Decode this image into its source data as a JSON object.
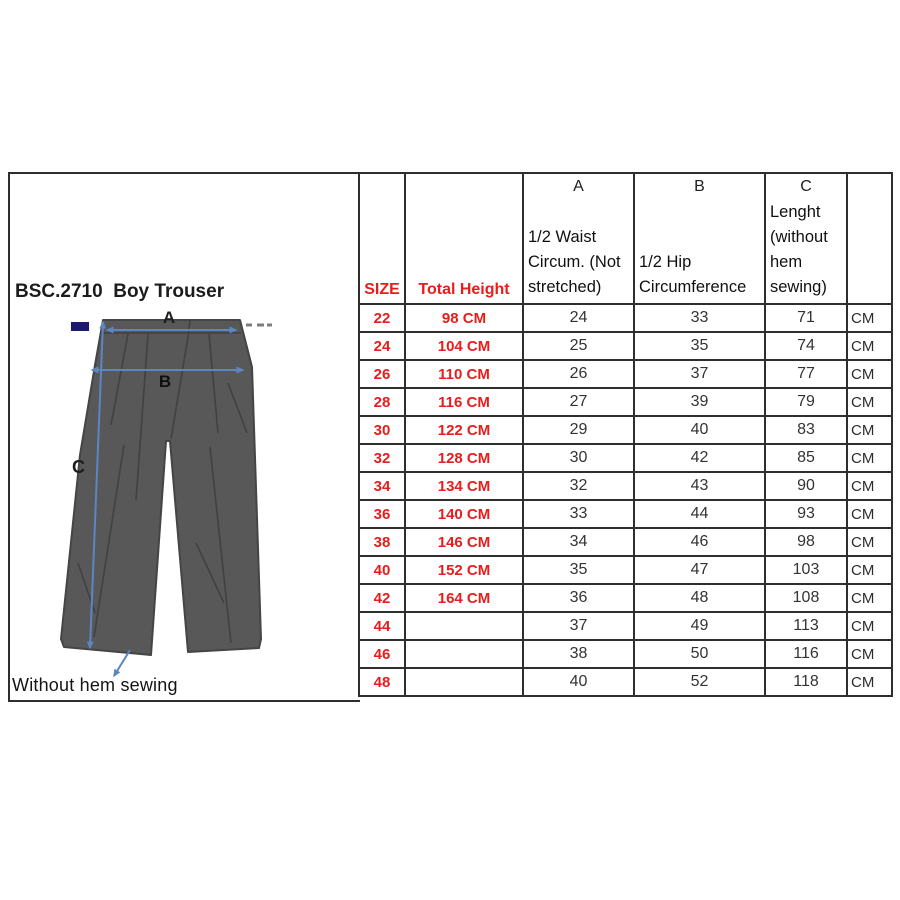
{
  "document": {
    "title": "BSC.2710  Boy Trouser",
    "footnote": "Without hem sewing",
    "accent_red": "#e91c1c",
    "diagram": {
      "label_a": "A",
      "label_b": "B",
      "label_c": "C",
      "arrow_color": "#5b86c2",
      "trouser_fill": "#585858",
      "swatch_color": "#1a1a6e"
    },
    "table": {
      "header": {
        "size": "SIZE",
        "total_height": "Total Height",
        "col_a_letter": "A",
        "col_a_label": "1/2 Waist Circum. (Not stretched)",
        "col_b_letter": "B",
        "col_b_label": "1/2 Hip Circumference",
        "col_c_letter": "C",
        "col_c_label": "Lenght (without hem sewing)",
        "unit_header": ""
      },
      "rows": [
        {
          "size": "22",
          "total_height": "98 CM",
          "a": "24",
          "b": "33",
          "c": "71",
          "unit": "CM"
        },
        {
          "size": "24",
          "total_height": "104 CM",
          "a": "25",
          "b": "35",
          "c": "74",
          "unit": "CM"
        },
        {
          "size": "26",
          "total_height": "110 CM",
          "a": "26",
          "b": "37",
          "c": "77",
          "unit": "CM"
        },
        {
          "size": "28",
          "total_height": "116 CM",
          "a": "27",
          "b": "39",
          "c": "79",
          "unit": "CM"
        },
        {
          "size": "30",
          "total_height": "122 CM",
          "a": "29",
          "b": "40",
          "c": "83",
          "unit": "CM"
        },
        {
          "size": "32",
          "total_height": "128 CM",
          "a": "30",
          "b": "42",
          "c": "85",
          "unit": "CM"
        },
        {
          "size": "34",
          "total_height": "134 CM",
          "a": "32",
          "b": "43",
          "c": "90",
          "unit": "CM"
        },
        {
          "size": "36",
          "total_height": "140 CM",
          "a": "33",
          "b": "44",
          "c": "93",
          "unit": "CM"
        },
        {
          "size": "38",
          "total_height": "146 CM",
          "a": "34",
          "b": "46",
          "c": "98",
          "unit": "CM"
        },
        {
          "size": "40",
          "total_height": "152 CM",
          "a": "35",
          "b": "47",
          "c": "103",
          "unit": "CM"
        },
        {
          "size": "42",
          "total_height": "164 CM",
          "a": "36",
          "b": "48",
          "c": "108",
          "unit": "CM"
        },
        {
          "size": "44",
          "total_height": "",
          "a": "37",
          "b": "49",
          "c": "113",
          "unit": "CM"
        },
        {
          "size": "46",
          "total_height": "",
          "a": "38",
          "b": "50",
          "c": "116",
          "unit": "CM"
        },
        {
          "size": "48",
          "total_height": "",
          "a": "40",
          "b": "52",
          "c": "118",
          "unit": "CM"
        }
      ]
    }
  }
}
